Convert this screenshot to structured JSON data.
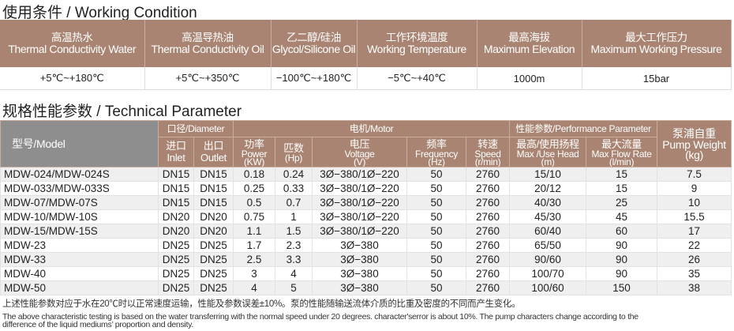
{
  "working_condition": {
    "title": "使用条件 / Working Condition",
    "headers": [
      {
        "cn": "高温热水",
        "en": "Thermal Conductivity Water"
      },
      {
        "cn": "高温导热油",
        "en": "Thermal Conductivity Oil"
      },
      {
        "cn": "乙二醇/硅油",
        "en": "Glycol/Silicone Oil"
      },
      {
        "cn": "工作环境温度",
        "en": "Working Temperature"
      },
      {
        "cn": "最高海拔",
        "en": "Maximum Elevation"
      },
      {
        "cn": "最大工作压力",
        "en": "Maximum Working Pressure"
      }
    ],
    "values": [
      "+5℃~+180℃",
      "+5℃~+350℃",
      "−100℃~+180℃",
      "−5℃~+40℃",
      "1000m",
      "15bar"
    ]
  },
  "technical": {
    "title": "规格性能参数 / Technical Parameter",
    "model_header": "型号/Model",
    "diameter_header": "口径/Diameter",
    "motor_header": "电机/Motor",
    "performance_header": "性能参数/Performance Parameter",
    "weight_header": {
      "cn": "泵浦自重",
      "en": "Pump Weight",
      "unit": "(kg)"
    },
    "sub": [
      {
        "cn": "进口",
        "en": "Inlet"
      },
      {
        "cn": "出口",
        "en": "Outlet"
      },
      {
        "cn": "功率",
        "en": "Power",
        "unit": "(KW)"
      },
      {
        "cn": "匹数",
        "en": "(Hp)"
      },
      {
        "cn": "电压",
        "en": "Voltage",
        "unit": "(V)"
      },
      {
        "cn": "频率",
        "en": "Frequency",
        "unit": "(Hz)"
      },
      {
        "cn": "转速",
        "en": "Speed",
        "unit": "(r/min)"
      },
      {
        "cn": "最高/使用扬程",
        "en": "Max /Use Head",
        "unit": "(m)"
      },
      {
        "cn": "最大流量",
        "en": "Max Flow Rate",
        "unit": "(l/min)"
      }
    ],
    "rows": [
      [
        "MDW-024/MDW-024S",
        "DN15",
        "DN15",
        "0.18",
        "0.24",
        "3Ø−380/1Ø−220",
        "50",
        "2760",
        "15/10",
        "15",
        "7.5"
      ],
      [
        "MDW-033/MDW-033S",
        "DN15",
        "DN15",
        "0.25",
        "0.33",
        "3Ø−380/1Ø−220",
        "50",
        "2760",
        "20/12",
        "15",
        "9"
      ],
      [
        "MDW-07/MDW-07S",
        "DN15",
        "DN15",
        "0.5",
        "0.7",
        "3Ø−380/1Ø−220",
        "50",
        "2760",
        "40/30",
        "25",
        "10"
      ],
      [
        "MDW-10/MDW-10S",
        "DN20",
        "DN20",
        "0.75",
        "1",
        "3Ø−380/1Ø−220",
        "50",
        "2760",
        "45/30",
        "45",
        "15.5"
      ],
      [
        "MDW-15/MDW-15S",
        "DN20",
        "DN20",
        "1.1",
        "1.5",
        "3Ø−380/1Ø−220",
        "50",
        "2760",
        "60/40",
        "60",
        "17"
      ],
      [
        "MDW-23",
        "DN25",
        "DN25",
        "1.7",
        "2.3",
        "3Ø−380",
        "50",
        "2760",
        "65/50",
        "90",
        "22"
      ],
      [
        "MDW-33",
        "DN25",
        "DN25",
        "2.5",
        "3.3",
        "3Ø−380",
        "50",
        "2760",
        "90/60",
        "90",
        "26"
      ],
      [
        "MDW-40",
        "DN25",
        "DN25",
        "3",
        "4",
        "3Ø−380",
        "50",
        "2760",
        "100/70",
        "90",
        "35"
      ],
      [
        "MDW-50",
        "DN25",
        "DN25",
        "4",
        "5",
        "3Ø−380",
        "50",
        "2760",
        "100/60",
        "150",
        "38"
      ]
    ]
  },
  "notes": {
    "cn": "上述性能参数对应于水在20℃时以正常速度运输，性能及参数误差±10%。泵的性能随输送流体介质的比重及密度的不同而产生变化。",
    "en1": "The above characteristic testing is based on the water transferring with the normal speed under 20 degrees.  character'serror is about 10%. The pump characters change according to the",
    "en2": "difference of the liquid mediums’ proportion and density."
  },
  "colors": {
    "header": "#a98472",
    "model_header": "#8e8e8e"
  }
}
